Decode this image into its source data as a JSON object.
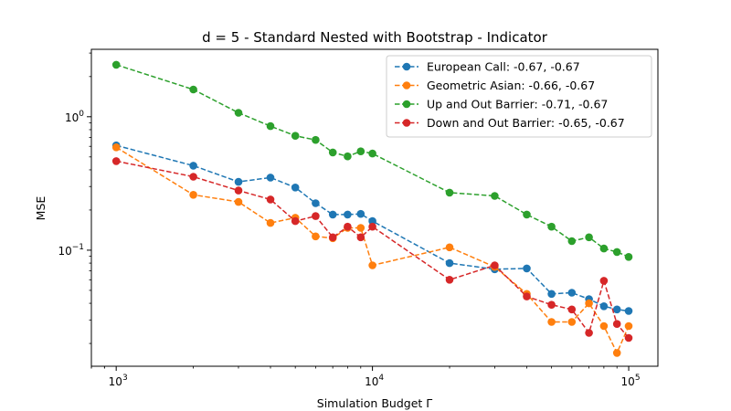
{
  "chart_data": {
    "type": "line",
    "title": "d = 5 - Standard Nested with Bootstrap - Indicator",
    "xlabel": "Simulation Budget Γ",
    "ylabel": "MSE",
    "xscale": "log",
    "yscale": "log",
    "xlim": [
      800,
      130000
    ],
    "ylim": [
      0.0135,
      3.2
    ],
    "x_ticks": [
      {
        "value": 1000,
        "base": "10",
        "exp": "3"
      },
      {
        "value": 10000,
        "base": "10",
        "exp": "4"
      },
      {
        "value": 100000,
        "base": "10",
        "exp": "5"
      }
    ],
    "y_ticks": [
      {
        "value": 0.1,
        "base": "10",
        "exp": "−1"
      },
      {
        "value": 1,
        "base": "10",
        "exp": "0"
      }
    ],
    "grid": false,
    "legend_position": "top-right",
    "x": [
      1000,
      2000,
      3000,
      4000,
      5000,
      6000,
      7000,
      8000,
      9000,
      10000,
      20000,
      30000,
      40000,
      50000,
      60000,
      70000,
      80000,
      90000,
      100000
    ],
    "series": [
      {
        "name": "European Call: -0.67, -0.67",
        "color": "#1f77b4",
        "values": [
          0.61,
          0.43,
          0.325,
          0.35,
          0.295,
          0.225,
          0.185,
          0.185,
          0.187,
          0.165,
          0.08,
          0.072,
          0.073,
          0.047,
          0.048,
          0.043,
          0.038,
          0.036,
          0.035
        ]
      },
      {
        "name": "Geometric Asian: -0.66, -0.67",
        "color": "#ff7f0e",
        "values": [
          0.59,
          0.26,
          0.23,
          0.16,
          0.175,
          0.127,
          0.123,
          0.147,
          0.147,
          0.077,
          0.105,
          0.075,
          0.047,
          0.029,
          0.029,
          0.04,
          0.027,
          0.017,
          0.027
        ]
      },
      {
        "name": "Up and Out Barrier: -0.71, -0.67",
        "color": "#2ca02c",
        "values": [
          2.45,
          1.6,
          1.07,
          0.85,
          0.72,
          0.67,
          0.54,
          0.505,
          0.55,
          0.53,
          0.27,
          0.255,
          0.185,
          0.15,
          0.117,
          0.125,
          0.103,
          0.097,
          0.089
        ]
      },
      {
        "name": "Down and Out Barrier: -0.65, -0.67",
        "color": "#d62728",
        "values": [
          0.465,
          0.355,
          0.28,
          0.24,
          0.165,
          0.18,
          0.125,
          0.15,
          0.125,
          0.15,
          0.06,
          0.077,
          0.045,
          0.039,
          0.036,
          0.024,
          0.059,
          0.028,
          0.022
        ]
      }
    ]
  }
}
